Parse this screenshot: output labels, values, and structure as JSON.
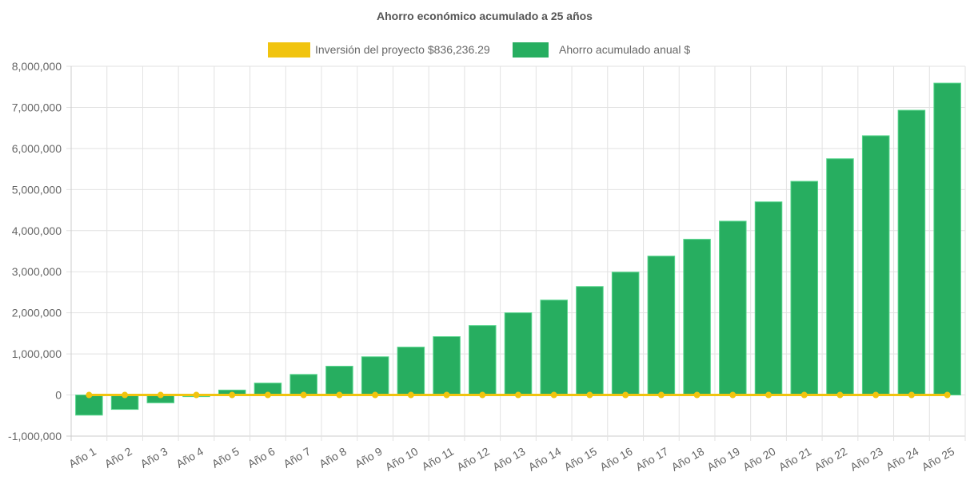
{
  "chart_data": {
    "type": "bar",
    "title": "Ahorro económico acumulado a 25 años",
    "xlabel": "",
    "ylabel": "",
    "ylim": [
      -1000000,
      8000000
    ],
    "yticks": [
      -1000000,
      0,
      1000000,
      2000000,
      3000000,
      4000000,
      5000000,
      6000000,
      7000000,
      8000000
    ],
    "ytick_labels": [
      "-1,000,000",
      "0",
      "1,000,000",
      "2,000,000",
      "3,000,000",
      "4,000,000",
      "5,000,000",
      "6,000,000",
      "7,000,000",
      "8,000,000"
    ],
    "grid": true,
    "legend_position": "top",
    "categories": [
      "Año 1",
      "Año 2",
      "Año 3",
      "Año 4",
      "Año 5",
      "Año 6",
      "Año 7",
      "Año 8",
      "Año 9",
      "Año 10",
      "Año 11",
      "Año 12",
      "Año 13",
      "Año 14",
      "Año 15",
      "Año 16",
      "Año 17",
      "Año 18",
      "Año 19",
      "Año 20",
      "Año 21",
      "Año 22",
      "Año 23",
      "Año 24",
      "Año 25"
    ],
    "series": [
      {
        "name": "Inversión del proyecto $836,236.29",
        "type": "line",
        "color": "#f1c40f",
        "values": [
          0,
          0,
          0,
          0,
          0,
          0,
          0,
          0,
          0,
          0,
          0,
          0,
          0,
          0,
          0,
          0,
          0,
          0,
          0,
          0,
          0,
          0,
          0,
          0,
          0
        ]
      },
      {
        "name": "Ahorro acumulado anual $",
        "type": "bar",
        "color": "#27ae60",
        "values": [
          -490000,
          -350000,
          -190000,
          -40000,
          120000,
          290000,
          500000,
          700000,
          930000,
          1165000,
          1420000,
          1690000,
          2000000,
          2310000,
          2640000,
          2990000,
          3380000,
          3790000,
          4230000,
          4700000,
          5200000,
          5750000,
          6310000,
          6930000,
          7590000
        ]
      }
    ]
  }
}
